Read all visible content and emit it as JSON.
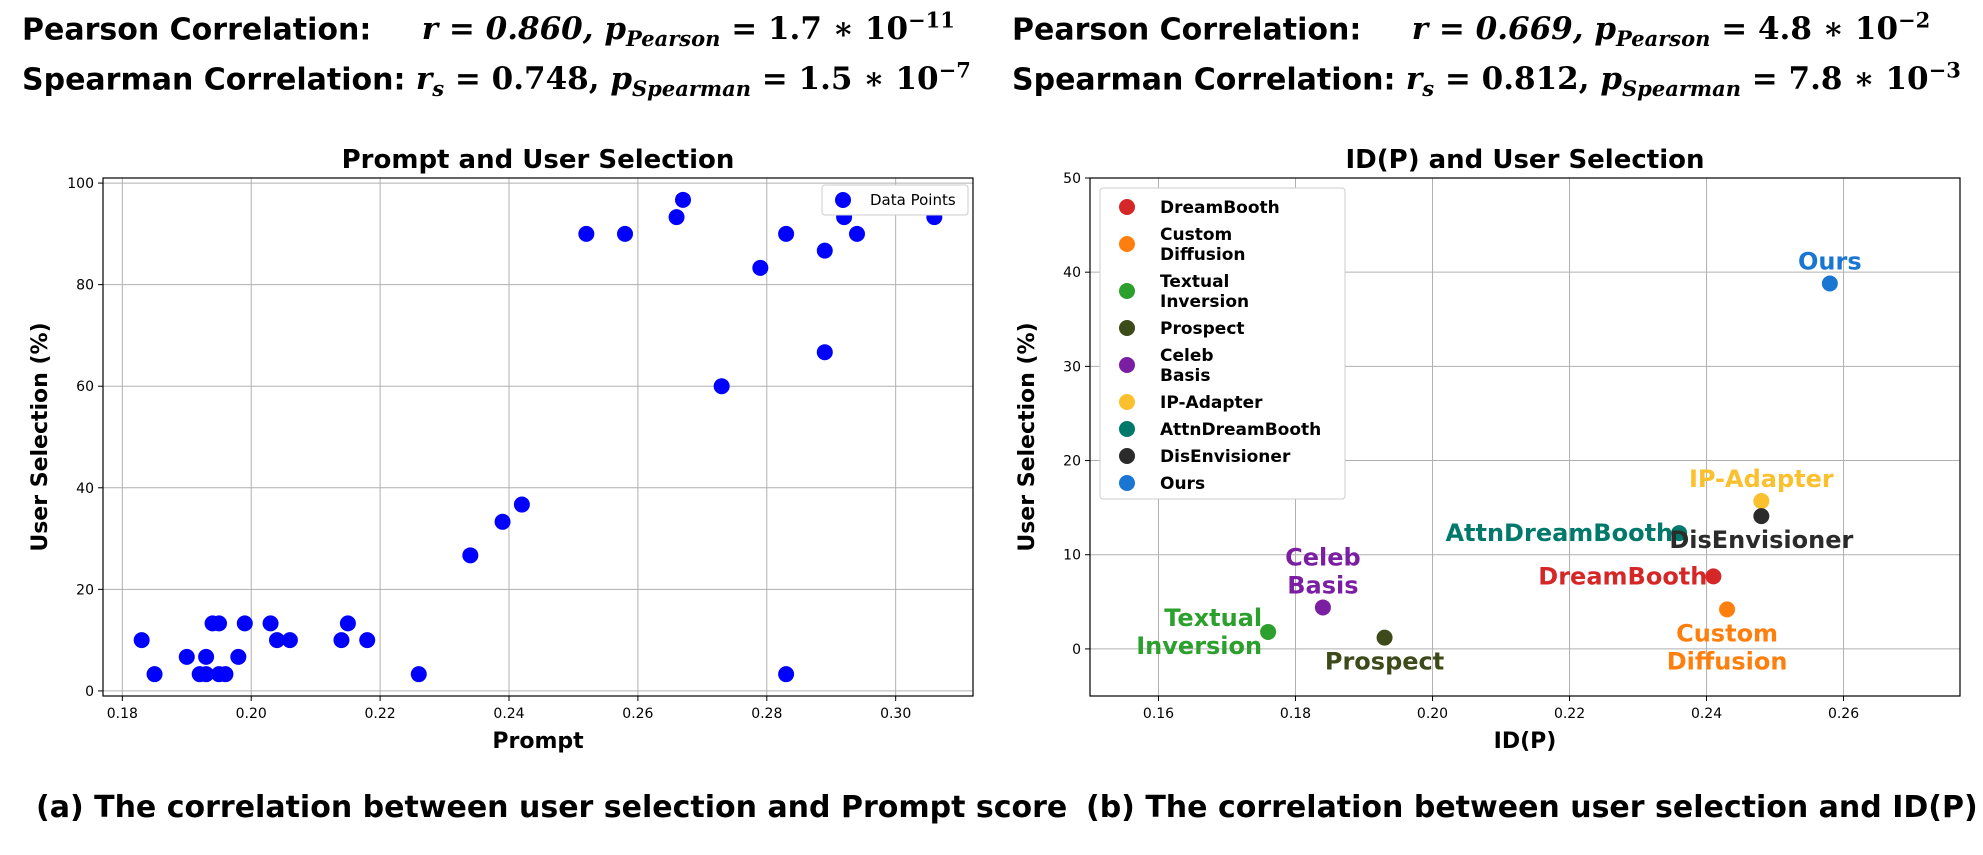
{
  "stats": {
    "left": {
      "pearson_label": "Pearson Correlation:",
      "pearson_r": "r = 0.860,",
      "pearson_p_name": "p",
      "pearson_p_sub": "Pearson",
      "pearson_p_val": "= 1.7 ∗ 10",
      "pearson_p_exp": "−11",
      "spearman_label": "Spearman Correlation:",
      "spearman_r_name": "r",
      "spearman_r_sub": "s",
      "spearman_r_val": "= 0.748,",
      "spearman_p_name": "p",
      "spearman_p_sub": "Spearman",
      "spearman_p_val": "= 1.5 ∗ 10",
      "spearman_p_exp": "−7"
    },
    "right": {
      "pearson_label": "Pearson Correlation:",
      "pearson_r": "r = 0.669,",
      "pearson_p_name": "p",
      "pearson_p_sub": "Pearson",
      "pearson_p_val": "= 4.8 ∗ 10",
      "pearson_p_exp": "−2",
      "spearman_label": "Spearman Correlation:",
      "spearman_r_name": "r",
      "spearman_r_sub": "s",
      "spearman_r_val": "= 0.812,",
      "spearman_p_name": "p",
      "spearman_p_sub": "Spearman",
      "spearman_p_val": "= 7.8 ∗ 10",
      "spearman_p_exp": "−3"
    }
  },
  "captions": {
    "left": "(a) The correlation between user selection and Prompt score",
    "right": "(b) The correlation between user selection and ID(P)"
  },
  "chart_data": [
    {
      "type": "scatter",
      "title": "Prompt and User Selection",
      "xlabel": "Prompt",
      "ylabel": "User Selection (%)",
      "xlim": [
        0.177,
        0.312
      ],
      "ylim": [
        -1,
        101
      ],
      "xticks": [
        0.18,
        0.2,
        0.22,
        0.24,
        0.26,
        0.28,
        0.3
      ],
      "xtick_labels": [
        "0.18",
        "0.20",
        "0.22",
        "0.24",
        "0.26",
        "0.28",
        "0.30"
      ],
      "yticks": [
        0,
        20,
        40,
        60,
        80,
        100
      ],
      "ytick_labels": [
        "0",
        "20",
        "40",
        "60",
        "80",
        "100"
      ],
      "grid": true,
      "legend": "top-right",
      "series": [
        {
          "name": "Data Points",
          "color": "#0000ff",
          "points": [
            [
              0.183,
              10
            ],
            [
              0.185,
              3.3
            ],
            [
              0.19,
              6.7
            ],
            [
              0.192,
              3.3
            ],
            [
              0.193,
              6.7
            ],
            [
              0.193,
              3.3
            ],
            [
              0.194,
              13.3
            ],
            [
              0.195,
              3.3
            ],
            [
              0.195,
              13.3
            ],
            [
              0.196,
              3.3
            ],
            [
              0.198,
              6.7
            ],
            [
              0.199,
              13.3
            ],
            [
              0.203,
              13.3
            ],
            [
              0.204,
              10
            ],
            [
              0.206,
              10
            ],
            [
              0.214,
              10
            ],
            [
              0.215,
              13.3
            ],
            [
              0.218,
              10
            ],
            [
              0.226,
              3.3
            ],
            [
              0.234,
              26.7
            ],
            [
              0.239,
              33.3
            ],
            [
              0.242,
              36.7
            ],
            [
              0.252,
              90
            ],
            [
              0.258,
              90
            ],
            [
              0.266,
              93.3
            ],
            [
              0.267,
              96.7
            ],
            [
              0.273,
              60
            ],
            [
              0.279,
              83.3
            ],
            [
              0.283,
              90
            ],
            [
              0.283,
              3.3
            ],
            [
              0.289,
              86.7
            ],
            [
              0.289,
              66.7
            ],
            [
              0.292,
              93.3
            ],
            [
              0.294,
              90
            ],
            [
              0.306,
              93.3
            ]
          ]
        }
      ]
    },
    {
      "type": "scatter",
      "title": "ID(P) and User Selection",
      "xlabel": "ID(P)",
      "ylabel": "User Selection (%)",
      "xlim": [
        0.15,
        0.277
      ],
      "ylim": [
        -5,
        50
      ],
      "xticks": [
        0.16,
        0.18,
        0.2,
        0.22,
        0.24,
        0.26
      ],
      "xtick_labels": [
        "0.16",
        "0.18",
        "0.20",
        "0.22",
        "0.24",
        "0.26"
      ],
      "yticks": [
        0,
        10,
        20,
        30,
        40,
        50
      ],
      "ytick_labels": [
        "0",
        "10",
        "20",
        "30",
        "40",
        "50"
      ],
      "grid": true,
      "legend": "top-left",
      "series": [
        {
          "name": "DreamBooth",
          "legend_lines": [
            "DreamBooth"
          ],
          "label_lines": [
            "DreamBooth"
          ],
          "label_pos": "left",
          "color": "#d62728",
          "x": 0.241,
          "y": 7.7
        },
        {
          "name": "Custom Diffusion",
          "legend_lines": [
            "Custom",
            "Diffusion"
          ],
          "label_lines": [
            "Custom",
            "Diffusion"
          ],
          "label_pos": "below",
          "color": "#ff7f0e",
          "x": 0.243,
          "y": 4.2
        },
        {
          "name": "Textual Inversion",
          "legend_lines": [
            "Textual",
            "Inversion"
          ],
          "label_lines": [
            "Textual",
            "Inversion"
          ],
          "label_pos": "left",
          "color": "#2ca02c",
          "x": 0.176,
          "y": 1.8
        },
        {
          "name": "Prospect",
          "legend_lines": [
            "Prospect"
          ],
          "label_lines": [
            "Prospect"
          ],
          "label_pos": "below",
          "color": "#3d4a1a",
          "x": 0.193,
          "y": 1.2
        },
        {
          "name": "Celeb Basis",
          "legend_lines": [
            "Celeb",
            "Basis"
          ],
          "label_lines": [
            "Celeb",
            "Basis"
          ],
          "label_pos": "above",
          "color": "#7b1fa2",
          "x": 0.184,
          "y": 4.4
        },
        {
          "name": "IP-Adapter",
          "legend_lines": [
            "IP-Adapter"
          ],
          "label_lines": [
            "IP-Adapter"
          ],
          "label_pos": "above",
          "color": "#fbc02d",
          "x": 0.248,
          "y": 15.7
        },
        {
          "name": "AttnDreamBooth",
          "legend_lines": [
            "AttnDreamBooth"
          ],
          "label_lines": [
            "AttnDreamBooth"
          ],
          "label_pos": "left",
          "color": "#00796b",
          "x": 0.236,
          "y": 12.3
        },
        {
          "name": "DisEnvisioner",
          "legend_lines": [
            "DisEnvisioner"
          ],
          "label_lines": [
            "DisEnvisioner"
          ],
          "label_pos": "below",
          "color": "#2b2b2b",
          "x": 0.248,
          "y": 14.1
        },
        {
          "name": "Ours",
          "legend_lines": [
            "Ours"
          ],
          "label_lines": [
            "Ours"
          ],
          "label_pos": "above",
          "color": "#1976d2",
          "x": 0.258,
          "y": 38.8
        }
      ]
    }
  ]
}
